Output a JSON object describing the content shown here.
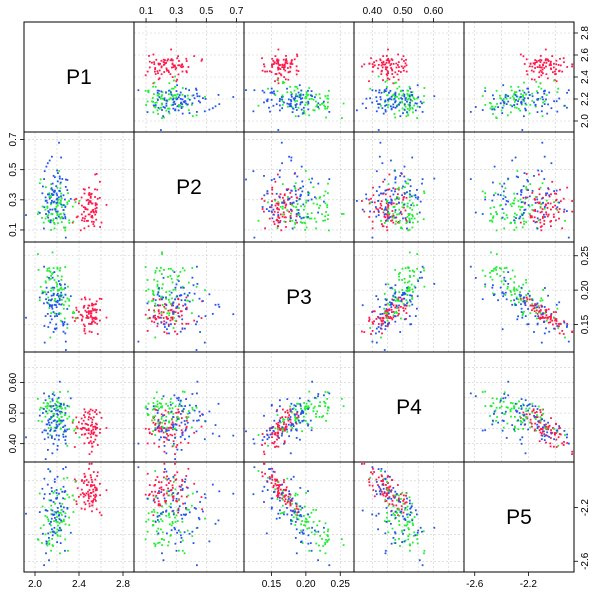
{
  "chart_data": {
    "type": "scatter",
    "layout": "scatterplot-matrix",
    "variables": [
      "P1",
      "P2",
      "P3",
      "P4",
      "P5"
    ],
    "ranges": {
      "P1": [
        1.9,
        2.9
      ],
      "P2": [
        0.02,
        0.75
      ],
      "P3": [
        0.11,
        0.27
      ],
      "P4": [
        0.34,
        0.7
      ],
      "P5": [
        -2.68,
        -1.86
      ]
    },
    "ticks": {
      "P1": [
        2.0,
        2.4,
        2.8,
        2.2,
        2.6
      ],
      "P2": [
        0.1,
        0.3,
        0.5,
        0.7
      ],
      "P3": [
        0.15,
        0.2,
        0.25
      ],
      "P4": [
        0.4,
        0.5,
        0.6,
        0.45,
        0.55,
        0.65
      ],
      "P5": [
        -2.6,
        -2.2,
        -2.4,
        -2.0
      ]
    },
    "tick_labels": {
      "top": {
        "P2": [
          "0.1",
          "0.3",
          "0.5",
          "0.7"
        ],
        "P4": [
          "0.40",
          "0.50",
          "0.60"
        ]
      },
      "bottom": {
        "P1": [
          "2.0",
          "2.4",
          "2.8"
        ],
        "P3": [
          "0.15",
          "0.20",
          "0.25"
        ],
        "P5": [
          "-2.6",
          "-2.2"
        ]
      },
      "left": {
        "P2": [
          "0.1",
          "0.3",
          "0.5",
          "0.7"
        ],
        "P4": [
          "0.40",
          "0.50",
          "0.60"
        ]
      },
      "right": {
        "P1": [
          "2.0",
          "2.2",
          "2.4",
          "2.6",
          "2.8"
        ],
        "P3": [
          "0.15",
          "0.20",
          "0.25"
        ],
        "P5": [
          "-2.6",
          "-2.2"
        ]
      }
    },
    "groups": [
      {
        "name": "red",
        "color": "#ff1a4b",
        "mean": {
          "P1": 2.5,
          "P2": 0.25,
          "P3": 0.165,
          "P4": 0.45,
          "P5": -2.08
        },
        "sd": {
          "P1": 0.06,
          "P2": 0.08,
          "P3": 0.012,
          "P4": 0.035,
          "P5": 0.08
        },
        "trend": {
          "P1": 0,
          "P2": 0,
          "P3": 1.0,
          "P4": 0.8,
          "P5": -1.0
        }
      },
      {
        "name": "green",
        "color": "#22ee33",
        "mean": {
          "P1": 2.2,
          "P2": 0.25,
          "P3": 0.195,
          "P4": 0.5,
          "P5": -2.28
        },
        "sd": {
          "P1": 0.08,
          "P2": 0.1,
          "P3": 0.025,
          "P4": 0.035,
          "P5": 0.15
        },
        "trend": {
          "P1": -0.6,
          "P2": 0,
          "P3": 1.0,
          "P4": 0.8,
          "P5": -1.0
        }
      },
      {
        "name": "blue",
        "color": "#2255ee",
        "mean": {
          "P1": 2.2,
          "P2": 0.3,
          "P3": 0.17,
          "P4": 0.47,
          "P5": -2.2
        },
        "sd": {
          "P1": 0.07,
          "P2": 0.12,
          "P3": 0.03,
          "P4": 0.05,
          "P5": 0.18
        },
        "trend": {
          "P1": 0,
          "P2": 0,
          "P3": 1.0,
          "P4": 0.7,
          "P5": -0.9
        }
      }
    ],
    "points_per_group": 85,
    "grid": true
  }
}
